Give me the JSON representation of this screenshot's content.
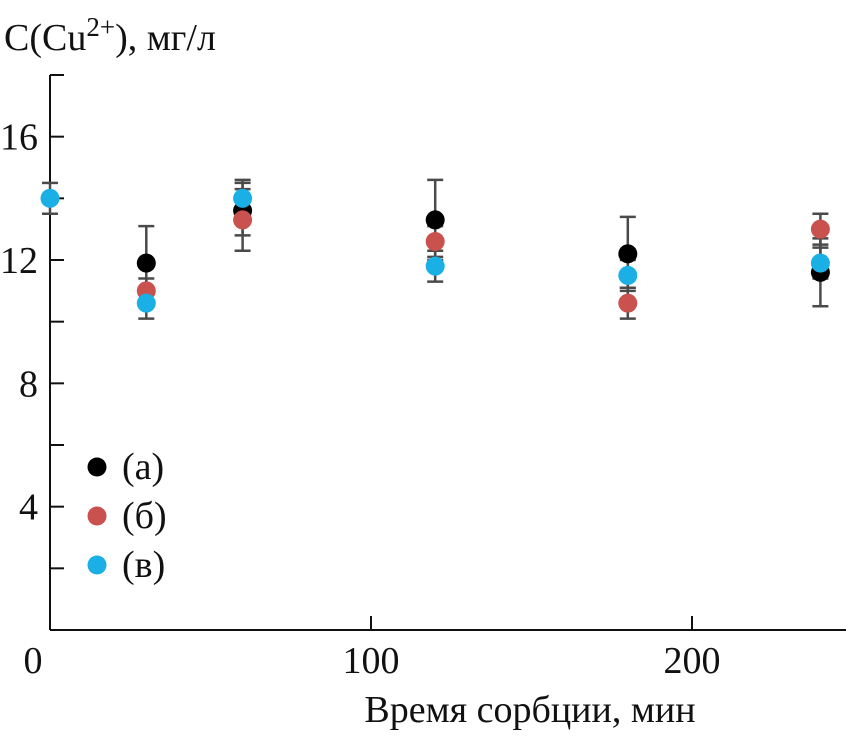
{
  "chart_data": {
    "type": "scatter",
    "ylabel": {
      "main": "C(Cu",
      "sup": "2+",
      "tail": "), мг/л"
    },
    "xlabel": "Время сорбции, мин",
    "xlim": [
      0,
      250
    ],
    "ylim": [
      0,
      18
    ],
    "x_ticks": [
      0,
      100,
      200
    ],
    "x_tick_labels": [
      "0",
      "100",
      "200"
    ],
    "y_ticks": [
      4,
      8,
      12,
      16
    ],
    "y_tick_labels": [
      "4",
      "8",
      "12",
      "16"
    ],
    "y_minor_ticks": [
      2,
      6,
      10,
      14,
      18
    ],
    "x_minor_ticks": [
      50,
      150
    ],
    "legend_position": "bottom-left",
    "series": [
      {
        "name": "(а)",
        "color": "#000000",
        "points": [
          {
            "x": 30,
            "y": 11.9,
            "err_low": 1.2,
            "err_high": 1.2
          },
          {
            "x": 60,
            "y": 13.6,
            "err_low": 0.8,
            "err_high": 0.9
          },
          {
            "x": 120,
            "y": 13.3,
            "err_low": 1.3,
            "err_high": 1.3
          },
          {
            "x": 180,
            "y": 12.2,
            "err_low": 1.1,
            "err_high": 1.2
          },
          {
            "x": 240,
            "y": 11.6,
            "err_low": 1.1,
            "err_high": 1.1
          }
        ]
      },
      {
        "name": "(б)",
        "color": "#c9514e",
        "points": [
          {
            "x": 30,
            "y": 11.0,
            "err_low": 0.4,
            "err_high": 0.4
          },
          {
            "x": 60,
            "y": 13.3,
            "err_low": 1.0,
            "err_high": 1.0
          },
          {
            "x": 120,
            "y": 12.6,
            "err_low": 0.5,
            "err_high": 0.5
          },
          {
            "x": 180,
            "y": 10.6,
            "err_low": 0.5,
            "err_high": 0.5
          },
          {
            "x": 240,
            "y": 13.0,
            "err_low": 0.5,
            "err_high": 0.5
          }
        ]
      },
      {
        "name": "(в)",
        "color": "#1ab0e6",
        "points": [
          {
            "x": 0,
            "y": 14.0,
            "err_low": 0.5,
            "err_high": 0.5
          },
          {
            "x": 30,
            "y": 10.6,
            "err_low": 0.5,
            "err_high": 0.5
          },
          {
            "x": 60,
            "y": 14.0,
            "err_low": 0.6,
            "err_high": 0.6
          },
          {
            "x": 120,
            "y": 11.8,
            "err_low": 0.5,
            "err_high": 0.5
          },
          {
            "x": 180,
            "y": 11.5,
            "err_low": 0.5,
            "err_high": 0.5
          },
          {
            "x": 240,
            "y": 11.9,
            "err_low": 0.5,
            "err_high": 0.5
          }
        ]
      }
    ]
  }
}
